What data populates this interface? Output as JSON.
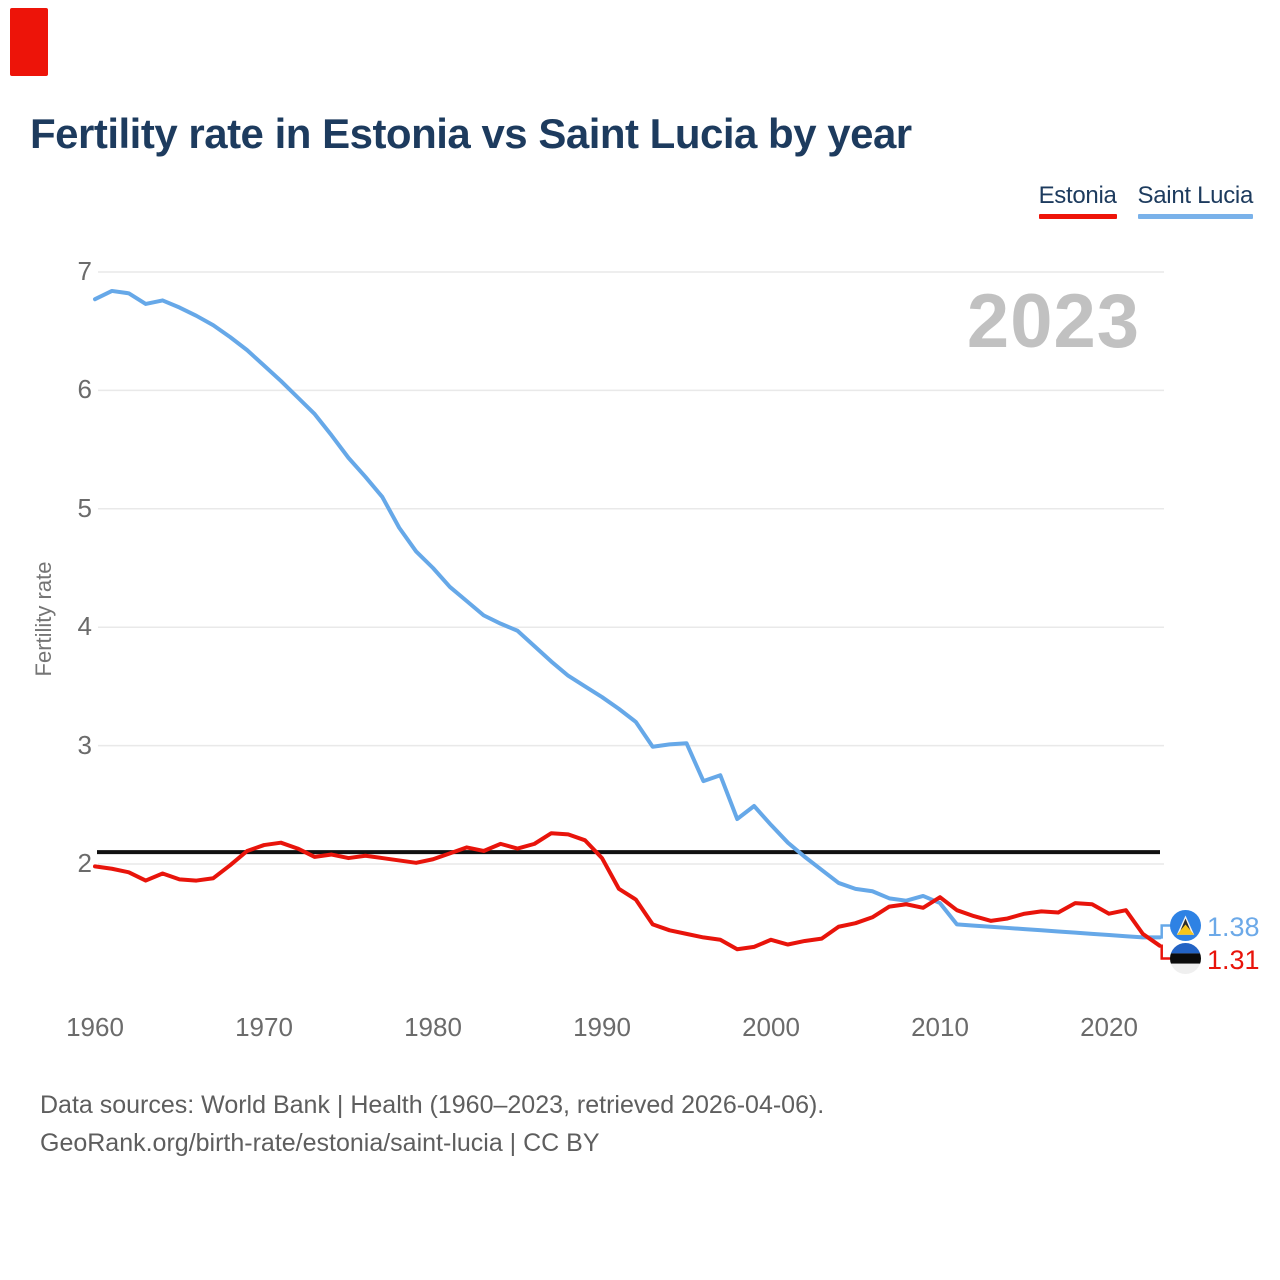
{
  "page": {
    "title": "Fertility rate in Estonia vs Saint Lucia by year",
    "watermark": "2023",
    "footer_line1": "Data sources: World Bank | Health (1960–2023, retrieved 2026-04-06).",
    "footer_line2": "GeoRank.org/birth-rate/estonia/saint-lucia | CC BY"
  },
  "legend": [
    {
      "label": "Estonia",
      "color": "#ee1409"
    },
    {
      "label": "Saint Lucia",
      "color": "#7ab2ea"
    }
  ],
  "end_labels": {
    "saint_lucia": {
      "value": "1.38",
      "color": "#6ca9e8",
      "icon": "saint-lucia-flag-icon"
    },
    "estonia": {
      "value": "1.31",
      "color": "#e8140b",
      "icon": "estonia-flag-icon"
    }
  },
  "colors": {
    "red_marker": "#ed1409",
    "title_text": "#1d3b5e",
    "grid": "#e9e9e9",
    "axis_text": "#6b6b6b",
    "watermark": "#c1c1c1"
  },
  "chart_data": {
    "type": "line",
    "title": "Fertility rate in Estonia vs Saint Lucia by year",
    "xlabel": "",
    "ylabel": "Fertility rate",
    "grid": "horizontal",
    "legend_position": "top-right",
    "ylim": [
      1.1,
      7.1
    ],
    "xlim": [
      1960,
      2023
    ],
    "x_ticks": [
      1960,
      1970,
      1980,
      1990,
      2000,
      2010,
      2020
    ],
    "y_ticks": [
      7,
      6,
      5,
      4,
      3,
      2
    ],
    "reference_line": {
      "value": 2.1,
      "color": "#111111"
    },
    "x": [
      1960,
      1961,
      1962,
      1963,
      1964,
      1965,
      1966,
      1967,
      1968,
      1969,
      1970,
      1971,
      1972,
      1973,
      1974,
      1975,
      1976,
      1977,
      1978,
      1979,
      1980,
      1981,
      1982,
      1983,
      1984,
      1985,
      1986,
      1987,
      1988,
      1989,
      1990,
      1991,
      1992,
      1993,
      1994,
      1995,
      1996,
      1997,
      1998,
      1999,
      2000,
      2001,
      2002,
      2003,
      2004,
      2005,
      2006,
      2007,
      2008,
      2009,
      2010,
      2011,
      2012,
      2013,
      2014,
      2015,
      2016,
      2017,
      2018,
      2019,
      2020,
      2021,
      2022,
      2023
    ],
    "series": [
      {
        "name": "Saint Lucia",
        "color": "#66a8e8",
        "end_label": "1.38",
        "values": [
          6.77,
          6.84,
          6.82,
          6.73,
          6.76,
          6.7,
          6.63,
          6.55,
          6.45,
          6.34,
          6.21,
          6.08,
          5.94,
          5.8,
          5.62,
          5.43,
          5.27,
          5.1,
          4.84,
          4.64,
          4.5,
          4.34,
          4.22,
          4.1,
          4.03,
          3.97,
          3.84,
          3.71,
          3.59,
          3.5,
          3.41,
          3.31,
          3.2,
          2.99,
          3.01,
          3.02,
          2.7,
          2.75,
          2.38,
          2.49,
          2.33,
          2.18,
          2.06,
          1.95,
          1.84,
          1.79,
          1.77,
          1.71,
          1.69,
          1.73,
          1.67,
          1.49,
          1.48,
          1.47,
          1.46,
          1.45,
          1.44,
          1.43,
          1.42,
          1.41,
          1.4,
          1.39,
          1.38,
          1.38
        ]
      },
      {
        "name": "Estonia",
        "color": "#e8140b",
        "end_label": "1.31",
        "values": [
          1.98,
          1.96,
          1.93,
          1.86,
          1.92,
          1.87,
          1.86,
          1.88,
          1.99,
          2.11,
          2.16,
          2.18,
          2.13,
          2.06,
          2.08,
          2.05,
          2.07,
          2.05,
          2.03,
          2.01,
          2.04,
          2.09,
          2.14,
          2.11,
          2.17,
          2.13,
          2.17,
          2.26,
          2.25,
          2.2,
          2.05,
          1.79,
          1.7,
          1.49,
          1.44,
          1.41,
          1.38,
          1.36,
          1.28,
          1.3,
          1.36,
          1.32,
          1.35,
          1.37,
          1.47,
          1.5,
          1.55,
          1.64,
          1.66,
          1.63,
          1.72,
          1.61,
          1.56,
          1.52,
          1.54,
          1.58,
          1.6,
          1.59,
          1.67,
          1.66,
          1.58,
          1.61,
          1.41,
          1.31
        ]
      }
    ]
  }
}
